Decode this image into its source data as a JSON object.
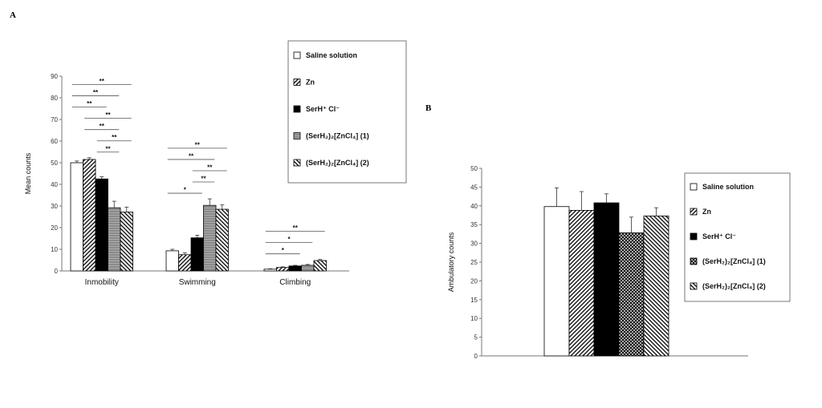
{
  "chart_data": [
    {
      "panel": "A",
      "type": "bar",
      "ylabel": "Mean counts",
      "ylim": [
        0,
        90
      ],
      "yticks": [
        0,
        10,
        20,
        30,
        40,
        50,
        60,
        70,
        80,
        90
      ],
      "categories": [
        "Inmobility",
        "Swimming",
        "Climbing"
      ],
      "series": [
        {
          "name": "Saline solution",
          "values": [
            50,
            9.3,
            0.8
          ],
          "errors": [
            0.8,
            0.7,
            0.2
          ],
          "pattern": "white"
        },
        {
          "name": "Zn",
          "values": [
            51.5,
            7.5,
            1.6
          ],
          "errors": [
            0.8,
            0.8,
            0.3
          ],
          "pattern": "diag-fwd"
        },
        {
          "name": "SerH⁺ Cl⁻",
          "values": [
            42.5,
            15.3,
            2.3
          ],
          "errors": [
            1.0,
            1.2,
            0.3
          ],
          "pattern": "black"
        },
        {
          "name": "(SerH₂)₂[ZnCl₄] (1)",
          "values": [
            29.2,
            30.3,
            2.6
          ],
          "errors": [
            3.0,
            3.0,
            0.4
          ],
          "pattern": "gray"
        },
        {
          "name": "(SerH₂)₂[ZnCl₄] (2)",
          "values": [
            27.2,
            28.5,
            4.8
          ],
          "errors": [
            2.3,
            2.0,
            0.5
          ],
          "pattern": "diag-back"
        }
      ],
      "annotations": [
        {
          "category": 0,
          "from": 0,
          "to": 4,
          "label": "**"
        },
        {
          "category": 0,
          "from": 0,
          "to": 3,
          "label": "**"
        },
        {
          "category": 0,
          "from": 0,
          "to": 2,
          "label": "**"
        },
        {
          "category": 0,
          "from": 1,
          "to": 4,
          "label": "**"
        },
        {
          "category": 0,
          "from": 1,
          "to": 3,
          "label": "**"
        },
        {
          "category": 0,
          "from": 2,
          "to": 4,
          "label": "**"
        },
        {
          "category": 0,
          "from": 2,
          "to": 3,
          "label": "**"
        },
        {
          "category": 1,
          "from": 0,
          "to": 4,
          "label": "**"
        },
        {
          "category": 1,
          "from": 0,
          "to": 3,
          "label": "**"
        },
        {
          "category": 1,
          "from": 2,
          "to": 4,
          "label": "**"
        },
        {
          "category": 1,
          "from": 2,
          "to": 3,
          "label": "**"
        },
        {
          "category": 1,
          "from": 0,
          "to": 2,
          "label": "*"
        },
        {
          "category": 2,
          "from": 0,
          "to": 4,
          "label": "**"
        },
        {
          "category": 2,
          "from": 0,
          "to": 3,
          "label": "*"
        },
        {
          "category": 2,
          "from": 0,
          "to": 2,
          "label": "*"
        }
      ],
      "legend": [
        "Saline solution",
        "Zn",
        "SerH⁺ Cl⁻",
        "(SerH₂)₂[ZnCl₄] (1)",
        "(SerH₂)₂[ZnCl₄] (2)"
      ],
      "legend_position": "top-right"
    },
    {
      "panel": "B",
      "type": "bar",
      "ylabel": "Ambulatory counts",
      "ylim": [
        0,
        50
      ],
      "yticks": [
        0,
        5,
        10,
        15,
        20,
        25,
        30,
        35,
        40,
        45,
        50
      ],
      "categories": [
        ""
      ],
      "series": [
        {
          "name": "Saline solution",
          "values": [
            39.8
          ],
          "errors": [
            5.0
          ],
          "pattern": "white"
        },
        {
          "name": "Zn",
          "values": [
            38.8
          ],
          "errors": [
            5.0
          ],
          "pattern": "diag-fwd"
        },
        {
          "name": "SerH⁺ Cl⁻",
          "values": [
            40.8
          ],
          "errors": [
            2.4
          ],
          "pattern": "black"
        },
        {
          "name": "(SerH₂)₂[ZnCl₄] (1)",
          "values": [
            32.8
          ],
          "errors": [
            4.2
          ],
          "pattern": "crosshatch"
        },
        {
          "name": "(SerH₂)₂[ZnCl₄] (2)",
          "values": [
            37.3
          ],
          "errors": [
            2.2
          ],
          "pattern": "diag-back"
        }
      ],
      "legend": [
        "Saline solution",
        "Zn",
        "SerH⁺ Cl⁻",
        "(SerH₂)₂[ZnCl₄] (1)",
        "(SerH₂)₂[ZnCl₄] (2)"
      ],
      "legend_position": "right"
    }
  ]
}
